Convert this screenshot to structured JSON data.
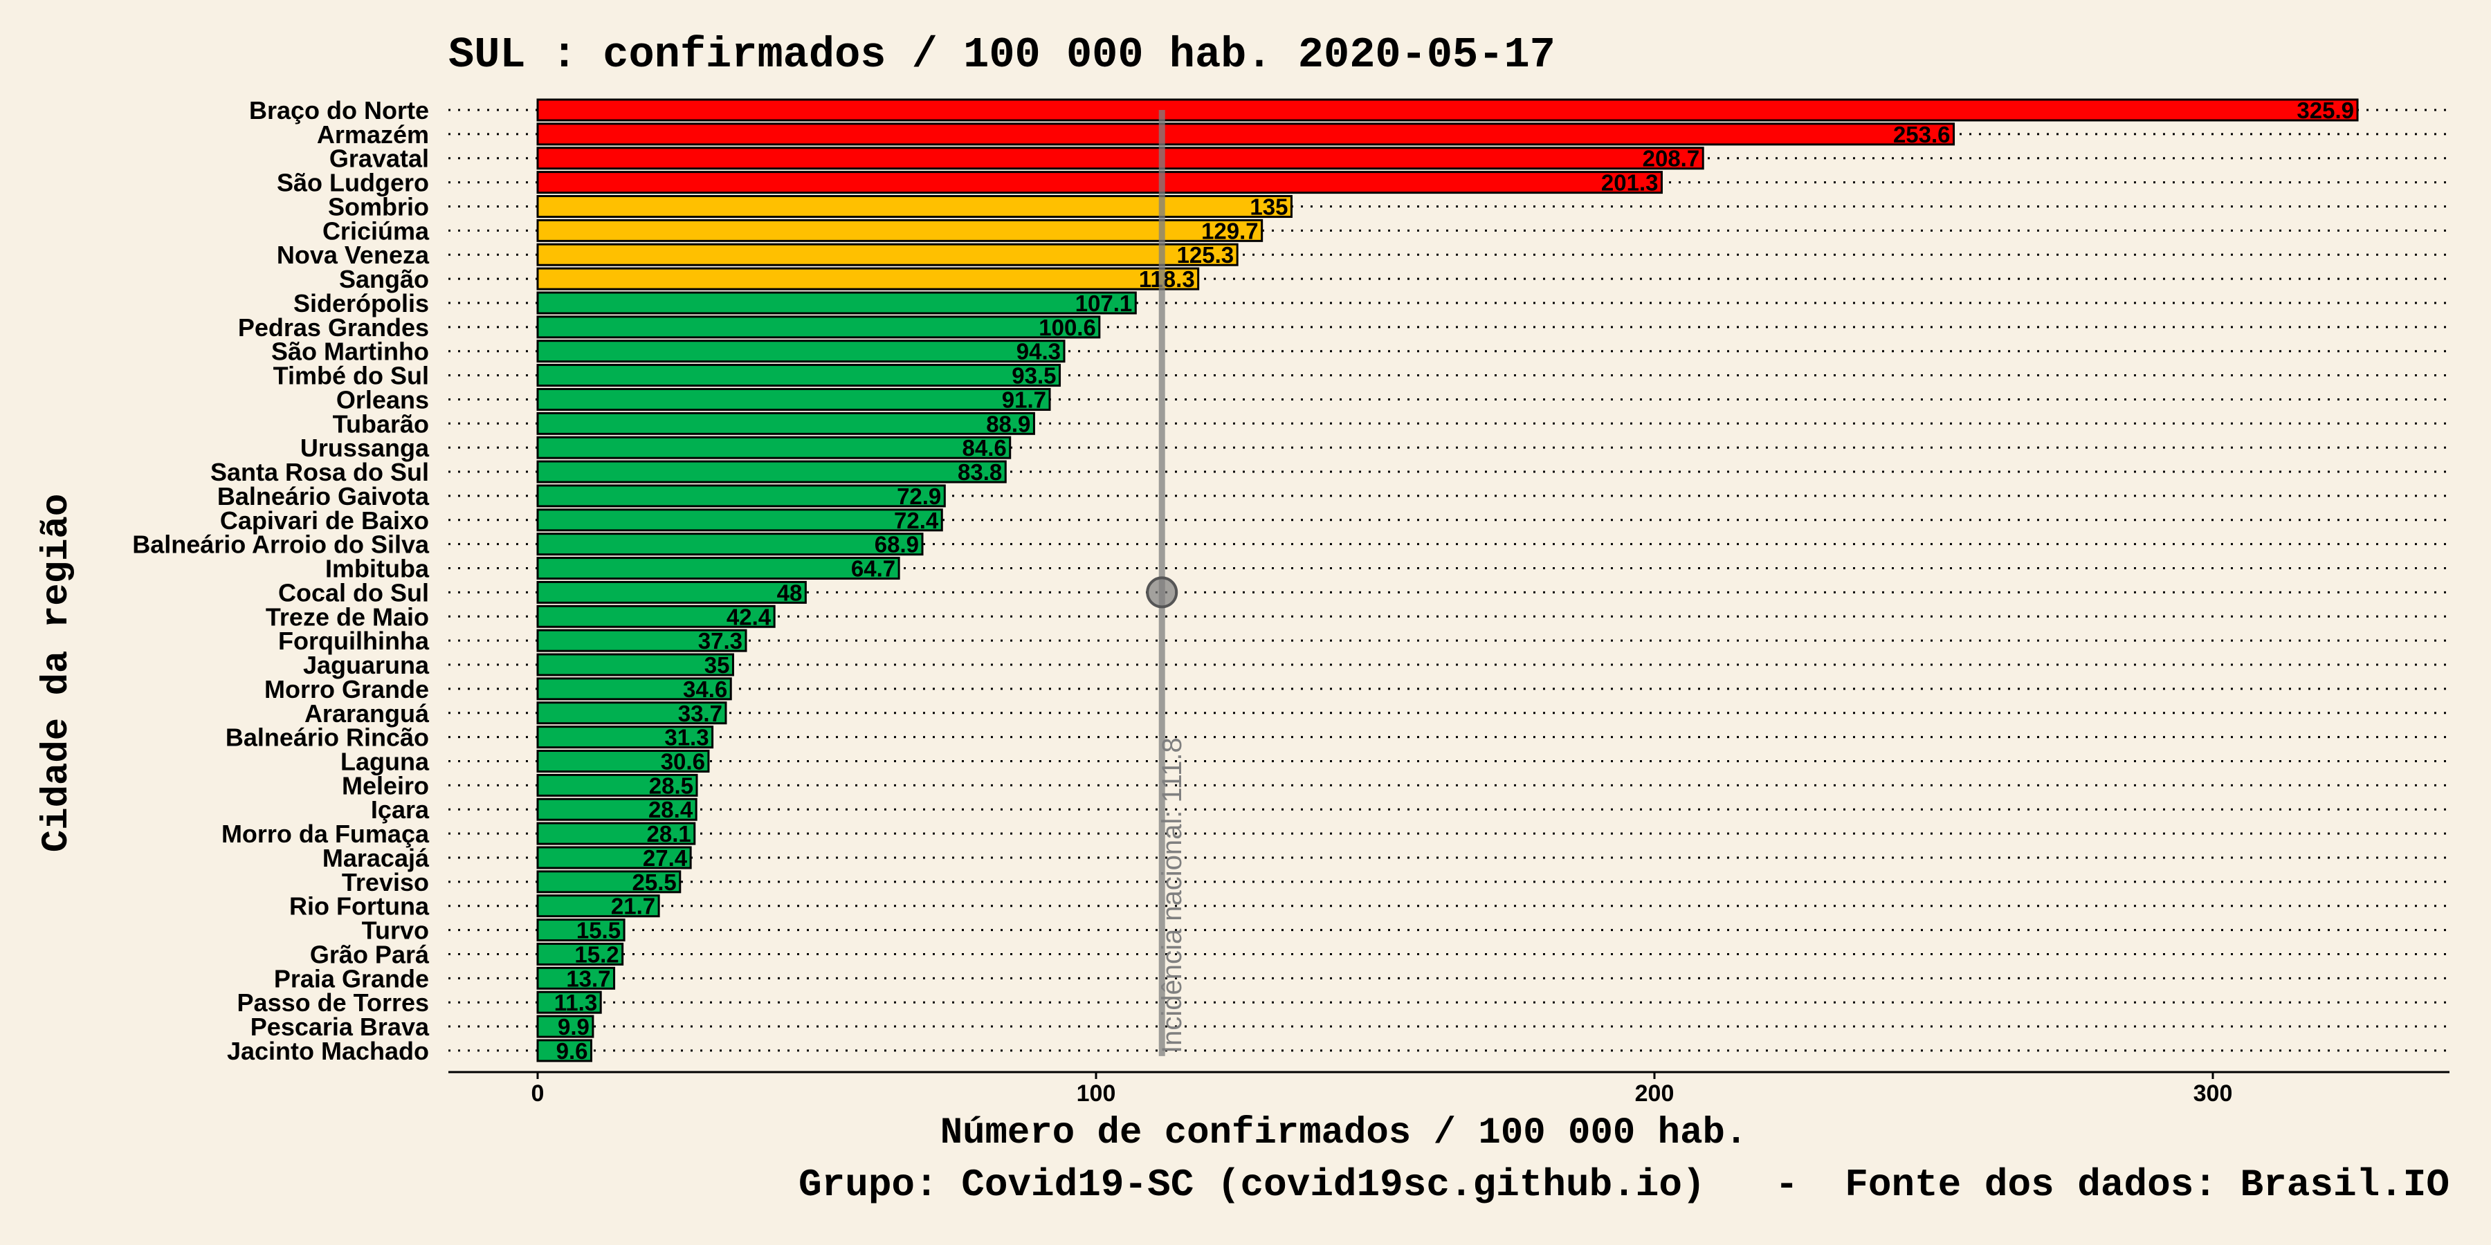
{
  "title": "SUL : confirmados / 100 000 hab. 2020-05-17",
  "caption": "Grupo: Covid19-SC (covid19sc.github.io)   -  Fonte dos dados: Brasil.IO",
  "colors": {
    "background": "#f8f1e4",
    "high": "#ff0000",
    "medium": "#ffc000",
    "low": "#00b050",
    "reference": "#7f7f7f"
  },
  "chart_data": {
    "type": "bar",
    "orientation": "horizontal",
    "xlabel": "Número de confirmados / 100 000 hab.",
    "ylabel": "Cidade da região",
    "xlim": [
      0,
      340
    ],
    "xticks": [
      0,
      100,
      200,
      300
    ],
    "grid": "dotted horizontal",
    "reference_line": {
      "value": 111.8,
      "label": "Incidência nacional: 111.8"
    },
    "categories": [
      "Braço do Norte",
      "Armazém",
      "Gravatal",
      "São Ludgero",
      "Sombrio",
      "Criciúma",
      "Nova Veneza",
      "Sangão",
      "Siderópolis",
      "Pedras Grandes",
      "São Martinho",
      "Timbé do Sul",
      "Orleans",
      "Tubarão",
      "Urussanga",
      "Santa Rosa do Sul",
      "Balneário Gaivota",
      "Capivari de Baixo",
      "Balneário Arroio do Silva",
      "Imbituba",
      "Cocal do Sul",
      "Treze de Maio",
      "Forquilhinha",
      "Jaguaruna",
      "Morro Grande",
      "Araranguá",
      "Balneário Rincão",
      "Laguna",
      "Meleiro",
      "Içara",
      "Morro da Fumaça",
      "Maracajá",
      "Treviso",
      "Rio Fortuna",
      "Turvo",
      "Grão Pará",
      "Praia Grande",
      "Passo de Torres",
      "Pescaria Brava",
      "Jacinto Machado"
    ],
    "values": [
      325.9,
      253.6,
      208.7,
      201.3,
      135,
      129.7,
      125.3,
      118.3,
      107.1,
      100.6,
      94.3,
      93.5,
      91.7,
      88.9,
      84.6,
      83.8,
      72.9,
      72.4,
      68.9,
      64.7,
      48,
      42.4,
      37.3,
      35,
      34.6,
      33.7,
      31.3,
      30.6,
      28.5,
      28.4,
      28.1,
      27.4,
      25.5,
      21.7,
      15.5,
      15.2,
      13.7,
      11.3,
      9.9,
      9.6
    ],
    "value_labels": [
      "325.9",
      "253.6",
      "208.7",
      "201.3",
      "135",
      "129.7",
      "125.3",
      "118.3",
      "107.1",
      "100.6",
      "94.3",
      "93.5",
      "91.7",
      "88.9",
      "84.6",
      "83.8",
      "72.9",
      "72.4",
      "68.9",
      "64.7",
      "48",
      "42.4",
      "37.3",
      "35",
      "34.6",
      "33.7",
      "31.3",
      "30.6",
      "28.5",
      "28.4",
      "28.1",
      "27.4",
      "25.5",
      "21.7",
      "15.5",
      "15.2",
      "13.7",
      "11.3",
      "9.9",
      "9.6"
    ],
    "levels": [
      "high",
      "high",
      "high",
      "high",
      "medium",
      "medium",
      "medium",
      "medium",
      "low",
      "low",
      "low",
      "low",
      "low",
      "low",
      "low",
      "low",
      "low",
      "low",
      "low",
      "low",
      "low",
      "low",
      "low",
      "low",
      "low",
      "low",
      "low",
      "low",
      "low",
      "low",
      "low",
      "low",
      "low",
      "low",
      "low",
      "low",
      "low",
      "low",
      "low",
      "low"
    ]
  }
}
